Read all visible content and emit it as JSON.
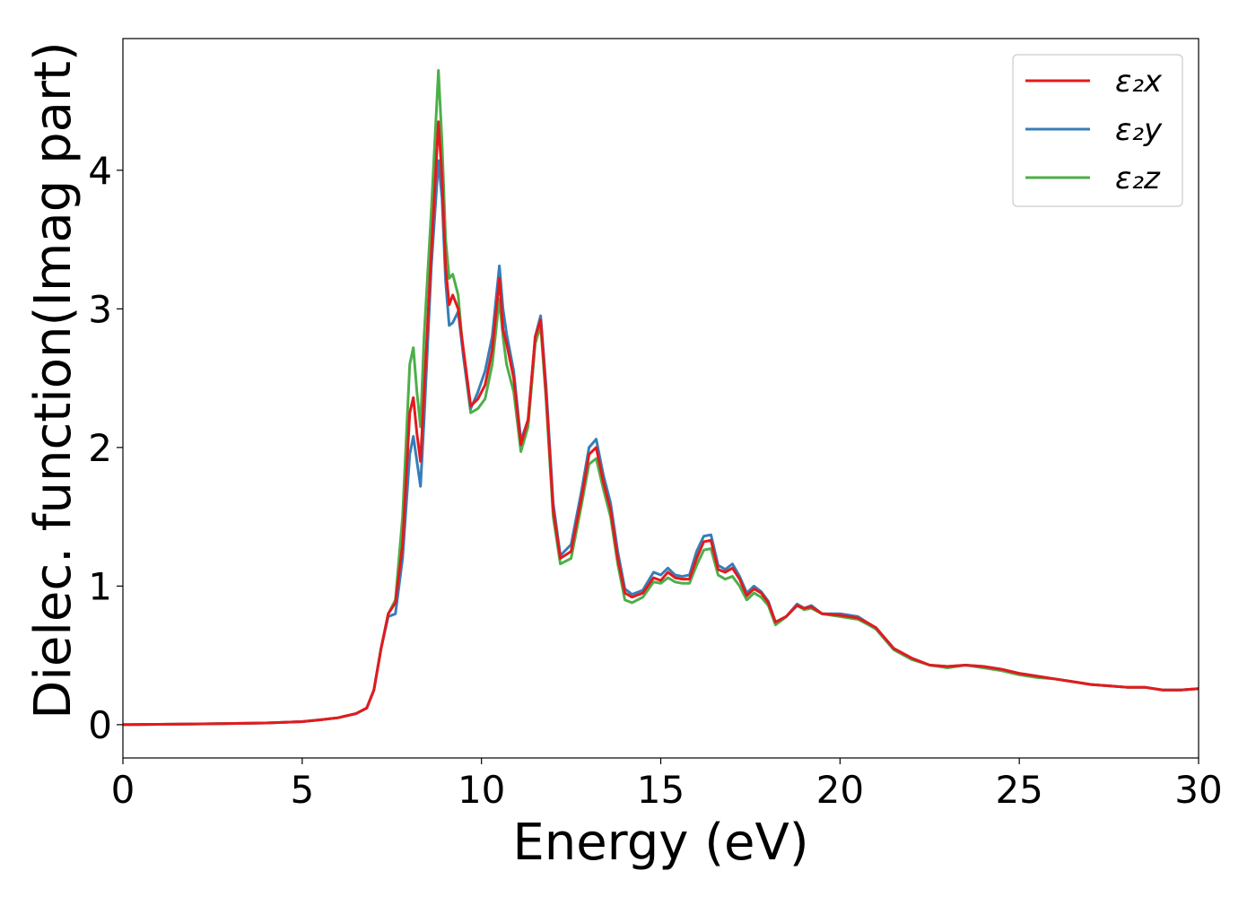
{
  "chart_data": {
    "type": "line",
    "title": "",
    "xlabel": "Energy (eV)",
    "ylabel": "Dielec. function(Imag part)",
    "xlim": [
      0,
      30
    ],
    "ylim": [
      -0.24,
      4.95
    ],
    "xticks": [
      0,
      5,
      10,
      15,
      20,
      25,
      30
    ],
    "yticks": [
      0,
      1,
      2,
      3,
      4
    ],
    "grid": false,
    "legend_position": "top-right",
    "series": [
      {
        "name": "ε₂x",
        "color": "#e41a1c",
        "x": [
          0,
          2,
          4,
          5,
          5.5,
          6,
          6.5,
          6.8,
          7,
          7.2,
          7.4,
          7.6,
          7.8,
          8,
          8.1,
          8.2,
          8.3,
          8.4,
          8.6,
          8.8,
          8.9,
          9.0,
          9.1,
          9.2,
          9.35,
          9.5,
          9.7,
          9.9,
          10.1,
          10.3,
          10.5,
          10.6,
          10.7,
          10.9,
          11.1,
          11.3,
          11.5,
          11.65,
          11.8,
          12.0,
          12.2,
          12.5,
          12.8,
          13.0,
          13.2,
          13.4,
          13.6,
          13.8,
          14.0,
          14.2,
          14.5,
          14.8,
          15.0,
          15.2,
          15.4,
          15.6,
          15.8,
          16.0,
          16.2,
          16.4,
          16.6,
          16.8,
          17.0,
          17.2,
          17.4,
          17.6,
          17.8,
          18.0,
          18.2,
          18.5,
          18.8,
          19.0,
          19.2,
          19.5,
          20.0,
          20.5,
          20.8,
          21.0,
          21.5,
          22.0,
          22.5,
          23.0,
          23.5,
          24.0,
          24.5,
          25.0,
          25.5,
          26.0,
          26.5,
          27.0,
          27.5,
          28.0,
          28.5,
          29.0,
          29.5,
          30.0
        ],
        "y": [
          0.0,
          0.005,
          0.012,
          0.022,
          0.035,
          0.05,
          0.08,
          0.12,
          0.25,
          0.55,
          0.8,
          0.88,
          1.3,
          2.25,
          2.36,
          2.1,
          1.9,
          2.4,
          3.4,
          4.35,
          3.95,
          3.3,
          3.03,
          3.1,
          3.0,
          2.7,
          2.3,
          2.35,
          2.45,
          2.7,
          3.22,
          2.85,
          2.75,
          2.5,
          2.02,
          2.2,
          2.8,
          2.92,
          2.4,
          1.55,
          1.2,
          1.25,
          1.65,
          1.95,
          2.0,
          1.75,
          1.55,
          1.2,
          0.95,
          0.92,
          0.95,
          1.06,
          1.04,
          1.1,
          1.06,
          1.05,
          1.05,
          1.2,
          1.32,
          1.33,
          1.12,
          1.1,
          1.13,
          1.05,
          0.93,
          0.98,
          0.95,
          0.88,
          0.74,
          0.78,
          0.86,
          0.84,
          0.85,
          0.8,
          0.79,
          0.77,
          0.73,
          0.7,
          0.55,
          0.48,
          0.43,
          0.42,
          0.43,
          0.42,
          0.4,
          0.37,
          0.35,
          0.33,
          0.31,
          0.29,
          0.28,
          0.27,
          0.27,
          0.25,
          0.25,
          0.26
        ]
      },
      {
        "name": "ε₂y",
        "color": "#377eb8",
        "x": [
          0,
          2,
          4,
          5,
          5.5,
          6,
          6.5,
          6.8,
          7,
          7.2,
          7.4,
          7.6,
          7.8,
          8,
          8.1,
          8.2,
          8.3,
          8.4,
          8.6,
          8.8,
          8.9,
          9.0,
          9.1,
          9.2,
          9.35,
          9.5,
          9.7,
          9.9,
          10.1,
          10.3,
          10.5,
          10.6,
          10.7,
          10.9,
          11.1,
          11.3,
          11.5,
          11.65,
          11.8,
          12.0,
          12.2,
          12.5,
          12.8,
          13.0,
          13.2,
          13.4,
          13.6,
          13.8,
          14.0,
          14.2,
          14.5,
          14.8,
          15.0,
          15.2,
          15.4,
          15.6,
          15.8,
          16.0,
          16.2,
          16.4,
          16.6,
          16.8,
          17.0,
          17.2,
          17.4,
          17.6,
          17.8,
          18.0,
          18.2,
          18.5,
          18.8,
          19.0,
          19.2,
          19.5,
          20.0,
          20.5,
          20.8,
          21.0,
          21.5,
          22.0,
          22.5,
          23.0,
          23.5,
          24.0,
          24.5,
          25.0,
          25.5,
          26.0,
          26.5,
          27.0,
          27.5,
          28.0,
          28.5,
          29.0,
          29.5,
          30.0
        ],
        "y": [
          0.0,
          0.005,
          0.012,
          0.022,
          0.035,
          0.05,
          0.08,
          0.12,
          0.25,
          0.55,
          0.78,
          0.8,
          1.2,
          1.95,
          2.08,
          1.9,
          1.72,
          2.2,
          3.3,
          4.07,
          3.8,
          3.2,
          2.88,
          2.9,
          2.98,
          2.65,
          2.28,
          2.4,
          2.55,
          2.8,
          3.31,
          3.0,
          2.82,
          2.55,
          2.05,
          2.2,
          2.8,
          2.95,
          2.45,
          1.6,
          1.22,
          1.3,
          1.7,
          2.0,
          2.06,
          1.8,
          1.6,
          1.25,
          0.98,
          0.94,
          0.97,
          1.1,
          1.08,
          1.13,
          1.08,
          1.07,
          1.08,
          1.25,
          1.36,
          1.37,
          1.15,
          1.12,
          1.16,
          1.07,
          0.95,
          1.0,
          0.96,
          0.89,
          0.74,
          0.78,
          0.87,
          0.84,
          0.86,
          0.8,
          0.8,
          0.78,
          0.73,
          0.7,
          0.55,
          0.48,
          0.43,
          0.42,
          0.43,
          0.42,
          0.4,
          0.37,
          0.35,
          0.33,
          0.31,
          0.29,
          0.28,
          0.27,
          0.27,
          0.25,
          0.25,
          0.26
        ]
      },
      {
        "name": "ε₂z",
        "color": "#4daf4a",
        "x": [
          0,
          2,
          4,
          5,
          5.5,
          6,
          6.5,
          6.8,
          7,
          7.2,
          7.4,
          7.6,
          7.8,
          8,
          8.1,
          8.2,
          8.3,
          8.4,
          8.6,
          8.8,
          8.9,
          9.0,
          9.1,
          9.2,
          9.35,
          9.5,
          9.7,
          9.9,
          10.1,
          10.3,
          10.5,
          10.6,
          10.7,
          10.9,
          11.1,
          11.3,
          11.5,
          11.65,
          11.8,
          12.0,
          12.2,
          12.5,
          12.8,
          13.0,
          13.2,
          13.4,
          13.6,
          13.8,
          14.0,
          14.2,
          14.5,
          14.8,
          15.0,
          15.2,
          15.4,
          15.6,
          15.8,
          16.0,
          16.2,
          16.4,
          16.6,
          16.8,
          17.0,
          17.2,
          17.4,
          17.6,
          17.8,
          18.0,
          18.2,
          18.5,
          18.8,
          19.0,
          19.2,
          19.5,
          20.0,
          20.5,
          20.8,
          21.0,
          21.5,
          22.0,
          22.5,
          23.0,
          23.5,
          24.0,
          24.5,
          25.0,
          25.5,
          26.0,
          26.5,
          27.0,
          27.5,
          28.0,
          28.5,
          29.0,
          29.5,
          30.0
        ],
        "y": [
          0.0,
          0.005,
          0.012,
          0.022,
          0.035,
          0.05,
          0.08,
          0.12,
          0.25,
          0.55,
          0.8,
          0.9,
          1.5,
          2.6,
          2.72,
          2.4,
          2.15,
          2.8,
          3.7,
          4.72,
          4.2,
          3.5,
          3.22,
          3.25,
          3.1,
          2.65,
          2.25,
          2.28,
          2.35,
          2.6,
          3.07,
          2.8,
          2.6,
          2.4,
          1.97,
          2.15,
          2.75,
          2.88,
          2.35,
          1.5,
          1.16,
          1.2,
          1.6,
          1.88,
          1.92,
          1.7,
          1.5,
          1.16,
          0.9,
          0.88,
          0.92,
          1.03,
          1.02,
          1.06,
          1.03,
          1.02,
          1.02,
          1.15,
          1.26,
          1.27,
          1.08,
          1.05,
          1.07,
          1.0,
          0.9,
          0.95,
          0.92,
          0.86,
          0.72,
          0.78,
          0.86,
          0.83,
          0.84,
          0.8,
          0.78,
          0.76,
          0.72,
          0.69,
          0.54,
          0.47,
          0.43,
          0.41,
          0.43,
          0.41,
          0.39,
          0.36,
          0.34,
          0.33,
          0.31,
          0.29,
          0.28,
          0.27,
          0.27,
          0.25,
          0.25,
          0.26
        ]
      }
    ]
  }
}
